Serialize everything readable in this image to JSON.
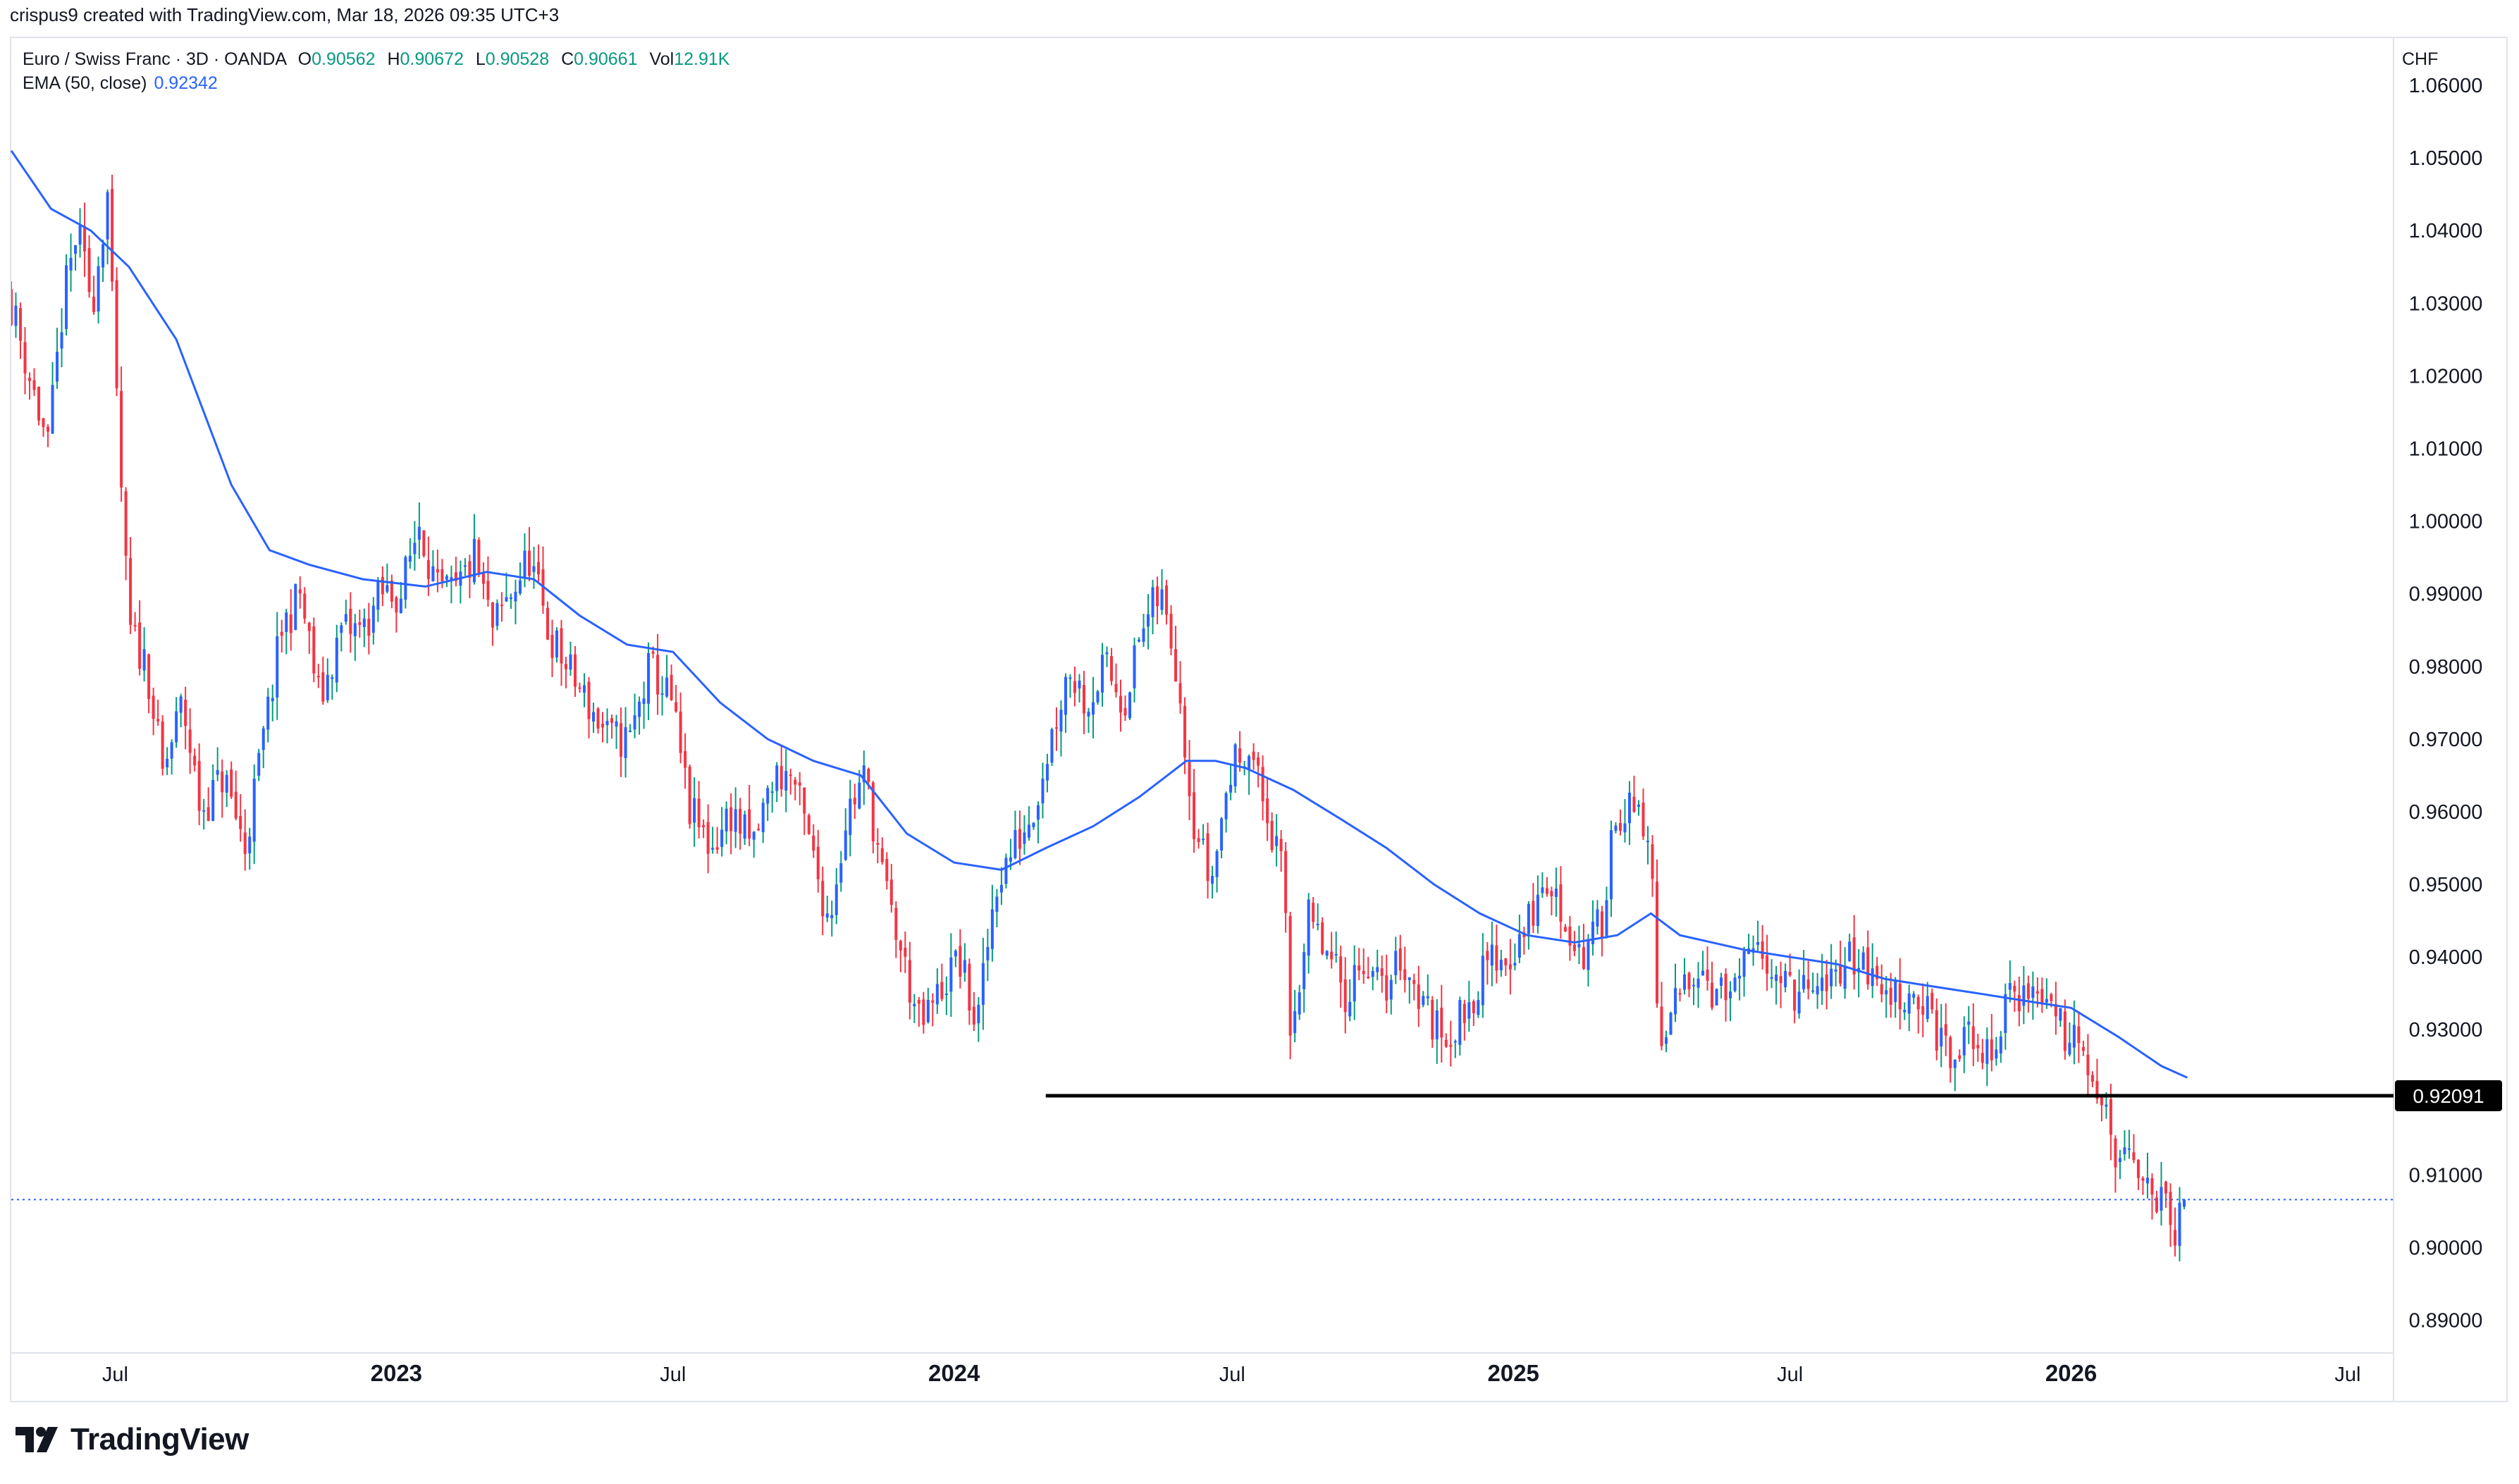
{
  "header": {
    "caption": "crispus9 created with TradingView.com, Mar 18, 2026 09:35 UTC+3"
  },
  "legend": {
    "symbol": "Euro / Swiss Franc · 3D · OANDA",
    "o_key": "O",
    "o_val": "0.90562",
    "h_key": "H",
    "h_val": "0.90672",
    "l_key": "L",
    "l_val": "0.90528",
    "c_key": "C",
    "c_val": "0.90661",
    "vol_key": "Vol",
    "vol_val": "12.91K",
    "ema_label": "EMA (50, close)",
    "ema_val": "0.92342"
  },
  "currency": "CHF",
  "brand": {
    "name": "TradingView"
  },
  "colors": {
    "up": "#089981",
    "up_body": "#2962ff",
    "down": "#f23645",
    "ema": "#2962ff",
    "support": "#000000",
    "grid": "#e0e3eb",
    "text": "#131722"
  },
  "chart_data": {
    "type": "candlestick",
    "symbol": "EURCHF",
    "timeframe": "3D",
    "y_ticks": [
      1.06,
      1.05,
      1.04,
      1.03,
      1.02,
      1.01,
      1.0,
      0.99,
      0.98,
      0.97,
      0.96,
      0.95,
      0.94,
      0.93,
      0.91,
      0.9,
      0.89
    ],
    "y_tick_labels": [
      "1.06000",
      "1.05000",
      "1.04000",
      "1.03000",
      "1.02000",
      "1.01000",
      "1.00000",
      "0.99000",
      "0.98000",
      "0.97000",
      "0.96000",
      "0.95000",
      "0.94000",
      "0.93000",
      "0.91000",
      "0.90000",
      "0.89000"
    ],
    "ylim": [
      0.8855,
      1.0665
    ],
    "x_range": [
      "2022-04-24",
      "2026-07-31"
    ],
    "x_ticks": [
      {
        "date": "2022-07-01",
        "label": "Jul",
        "bold": false
      },
      {
        "date": "2023-01-01",
        "label": "2023",
        "bold": true
      },
      {
        "date": "2023-07-01",
        "label": "Jul",
        "bold": false
      },
      {
        "date": "2024-01-01",
        "label": "2024",
        "bold": true
      },
      {
        "date": "2024-07-01",
        "label": "Jul",
        "bold": false
      },
      {
        "date": "2025-01-01",
        "label": "2025",
        "bold": true
      },
      {
        "date": "2025-07-01",
        "label": "Jul",
        "bold": false
      },
      {
        "date": "2026-01-01",
        "label": "2026",
        "bold": true
      },
      {
        "date": "2026-07-01",
        "label": "Jul",
        "bold": false
      }
    ],
    "price_path": [
      {
        "date": "2022-04-24",
        "price": 1.03
      },
      {
        "date": "2022-05-06",
        "price": 1.02
      },
      {
        "date": "2022-05-18",
        "price": 1.01
      },
      {
        "date": "2022-05-28",
        "price": 1.03
      },
      {
        "date": "2022-06-06",
        "price": 1.04
      },
      {
        "date": "2022-06-16",
        "price": 1.03
      },
      {
        "date": "2022-06-26",
        "price": 1.045
      },
      {
        "date": "2022-07-01",
        "price": 1.02
      },
      {
        "date": "2022-07-10",
        "price": 0.985
      },
      {
        "date": "2022-07-22",
        "price": 0.98
      },
      {
        "date": "2022-08-01",
        "price": 0.965
      },
      {
        "date": "2022-08-14",
        "price": 0.975
      },
      {
        "date": "2022-08-26",
        "price": 0.96
      },
      {
        "date": "2022-09-10",
        "price": 0.965
      },
      {
        "date": "2022-09-24",
        "price": 0.955
      },
      {
        "date": "2022-10-06",
        "price": 0.97
      },
      {
        "date": "2022-10-18",
        "price": 0.985
      },
      {
        "date": "2022-10-30",
        "price": 0.99
      },
      {
        "date": "2022-11-12",
        "price": 0.975
      },
      {
        "date": "2022-11-26",
        "price": 0.985
      },
      {
        "date": "2022-12-10",
        "price": 0.985
      },
      {
        "date": "2022-12-22",
        "price": 0.99
      },
      {
        "date": "2023-01-04",
        "price": 0.99
      },
      {
        "date": "2023-01-16",
        "price": 1.0
      },
      {
        "date": "2023-01-28",
        "price": 0.99
      },
      {
        "date": "2023-02-09",
        "price": 0.99
      },
      {
        "date": "2023-02-21",
        "price": 0.995
      },
      {
        "date": "2023-03-05",
        "price": 0.985
      },
      {
        "date": "2023-03-17",
        "price": 0.99
      },
      {
        "date": "2023-03-29",
        "price": 0.995
      },
      {
        "date": "2023-04-10",
        "price": 0.985
      },
      {
        "date": "2023-04-22",
        "price": 0.98
      },
      {
        "date": "2023-05-06",
        "price": 0.975
      },
      {
        "date": "2023-05-20",
        "price": 0.97
      },
      {
        "date": "2023-06-03",
        "price": 0.97
      },
      {
        "date": "2023-06-16",
        "price": 0.98
      },
      {
        "date": "2023-06-30",
        "price": 0.975
      },
      {
        "date": "2023-07-12",
        "price": 0.96
      },
      {
        "date": "2023-07-26",
        "price": 0.955
      },
      {
        "date": "2023-08-08",
        "price": 0.96
      },
      {
        "date": "2023-08-22",
        "price": 0.955
      },
      {
        "date": "2023-09-05",
        "price": 0.965
      },
      {
        "date": "2023-09-17",
        "price": 0.965
      },
      {
        "date": "2023-09-29",
        "price": 0.955
      },
      {
        "date": "2023-10-11",
        "price": 0.945
      },
      {
        "date": "2023-10-23",
        "price": 0.96
      },
      {
        "date": "2023-11-04",
        "price": 0.965
      },
      {
        "date": "2023-11-16",
        "price": 0.95
      },
      {
        "date": "2023-11-28",
        "price": 0.94
      },
      {
        "date": "2023-12-10",
        "price": 0.93
      },
      {
        "date": "2023-12-22",
        "price": 0.935
      },
      {
        "date": "2024-01-04",
        "price": 0.94
      },
      {
        "date": "2024-01-16",
        "price": 0.93
      },
      {
        "date": "2024-01-28",
        "price": 0.95
      },
      {
        "date": "2024-02-09",
        "price": 0.955
      },
      {
        "date": "2024-02-21",
        "price": 0.96
      },
      {
        "date": "2024-03-04",
        "price": 0.97
      },
      {
        "date": "2024-03-16",
        "price": 0.98
      },
      {
        "date": "2024-03-28",
        "price": 0.975
      },
      {
        "date": "2024-04-09",
        "price": 0.98
      },
      {
        "date": "2024-04-21",
        "price": 0.975
      },
      {
        "date": "2024-05-03",
        "price": 0.985
      },
      {
        "date": "2024-05-15",
        "price": 0.99
      },
      {
        "date": "2024-05-26",
        "price": 0.98
      },
      {
        "date": "2024-06-05",
        "price": 0.96
      },
      {
        "date": "2024-06-17",
        "price": 0.95
      },
      {
        "date": "2024-06-29",
        "price": 0.965
      },
      {
        "date": "2024-07-11",
        "price": 0.97
      },
      {
        "date": "2024-07-23",
        "price": 0.96
      },
      {
        "date": "2024-08-04",
        "price": 0.95
      },
      {
        "date": "2024-08-08",
        "price": 0.93
      },
      {
        "date": "2024-08-20",
        "price": 0.945
      },
      {
        "date": "2024-09-01",
        "price": 0.94
      },
      {
        "date": "2024-09-13",
        "price": 0.935
      },
      {
        "date": "2024-09-25",
        "price": 0.94
      },
      {
        "date": "2024-10-07",
        "price": 0.935
      },
      {
        "date": "2024-10-19",
        "price": 0.94
      },
      {
        "date": "2024-10-31",
        "price": 0.935
      },
      {
        "date": "2024-11-12",
        "price": 0.93
      },
      {
        "date": "2024-11-24",
        "price": 0.93
      },
      {
        "date": "2024-12-06",
        "price": 0.935
      },
      {
        "date": "2024-12-18",
        "price": 0.94
      },
      {
        "date": "2024-12-30",
        "price": 0.94
      },
      {
        "date": "2025-01-11",
        "price": 0.945
      },
      {
        "date": "2025-01-23",
        "price": 0.95
      },
      {
        "date": "2025-02-04",
        "price": 0.945
      },
      {
        "date": "2025-02-16",
        "price": 0.94
      },
      {
        "date": "2025-02-28",
        "price": 0.945
      },
      {
        "date": "2025-03-08",
        "price": 0.96
      },
      {
        "date": "2025-03-20",
        "price": 0.96
      },
      {
        "date": "2025-04-01",
        "price": 0.955
      },
      {
        "date": "2025-04-07",
        "price": 0.925
      },
      {
        "date": "2025-04-19",
        "price": 0.935
      },
      {
        "date": "2025-05-01",
        "price": 0.94
      },
      {
        "date": "2025-05-13",
        "price": 0.935
      },
      {
        "date": "2025-05-25",
        "price": 0.935
      },
      {
        "date": "2025-06-06",
        "price": 0.94
      },
      {
        "date": "2025-06-18",
        "price": 0.94
      },
      {
        "date": "2025-06-30",
        "price": 0.935
      },
      {
        "date": "2025-07-12",
        "price": 0.935
      },
      {
        "date": "2025-07-24",
        "price": 0.935
      },
      {
        "date": "2025-08-05",
        "price": 0.94
      },
      {
        "date": "2025-08-17",
        "price": 0.94
      },
      {
        "date": "2025-08-29",
        "price": 0.935
      },
      {
        "date": "2025-09-10",
        "price": 0.935
      },
      {
        "date": "2025-09-22",
        "price": 0.935
      },
      {
        "date": "2025-10-04",
        "price": 0.93
      },
      {
        "date": "2025-10-16",
        "price": 0.925
      },
      {
        "date": "2025-10-28",
        "price": 0.93
      },
      {
        "date": "2025-11-09",
        "price": 0.925
      },
      {
        "date": "2025-11-21",
        "price": 0.935
      },
      {
        "date": "2025-12-03",
        "price": 0.935
      },
      {
        "date": "2025-12-15",
        "price": 0.935
      },
      {
        "date": "2025-12-27",
        "price": 0.93
      },
      {
        "date": "2026-01-08",
        "price": 0.93
      },
      {
        "date": "2026-01-20",
        "price": 0.92
      },
      {
        "date": "2026-02-01",
        "price": 0.912
      },
      {
        "date": "2026-02-13",
        "price": 0.91
      },
      {
        "date": "2026-02-25",
        "price": 0.908
      },
      {
        "date": "2026-03-09",
        "price": 0.902
      },
      {
        "date": "2026-03-18",
        "price": 0.9066
      }
    ],
    "ema": {
      "label": "EMA (50, close)",
      "points": [
        {
          "date": "2022-04-24",
          "price": 1.051
        },
        {
          "date": "2022-05-20",
          "price": 1.043
        },
        {
          "date": "2022-06-15",
          "price": 1.04
        },
        {
          "date": "2022-07-10",
          "price": 1.035
        },
        {
          "date": "2022-08-10",
          "price": 1.025
        },
        {
          "date": "2022-09-15",
          "price": 1.005
        },
        {
          "date": "2022-10-10",
          "price": 0.996
        },
        {
          "date": "2022-11-05",
          "price": 0.994
        },
        {
          "date": "2022-12-10",
          "price": 0.992
        },
        {
          "date": "2023-01-20",
          "price": 0.991
        },
        {
          "date": "2023-03-01",
          "price": 0.993
        },
        {
          "date": "2023-04-01",
          "price": 0.992
        },
        {
          "date": "2023-05-01",
          "price": 0.987
        },
        {
          "date": "2023-06-01",
          "price": 0.983
        },
        {
          "date": "2023-07-01",
          "price": 0.982
        },
        {
          "date": "2023-08-01",
          "price": 0.975
        },
        {
          "date": "2023-09-01",
          "price": 0.97
        },
        {
          "date": "2023-10-01",
          "price": 0.967
        },
        {
          "date": "2023-11-01",
          "price": 0.965
        },
        {
          "date": "2023-12-01",
          "price": 0.957
        },
        {
          "date": "2024-01-01",
          "price": 0.953
        },
        {
          "date": "2024-02-01",
          "price": 0.952
        },
        {
          "date": "2024-03-01",
          "price": 0.955
        },
        {
          "date": "2024-04-01",
          "price": 0.958
        },
        {
          "date": "2024-05-01",
          "price": 0.962
        },
        {
          "date": "2024-06-01",
          "price": 0.967
        },
        {
          "date": "2024-06-20",
          "price": 0.967
        },
        {
          "date": "2024-07-10",
          "price": 0.966
        },
        {
          "date": "2024-08-10",
          "price": 0.963
        },
        {
          "date": "2024-09-10",
          "price": 0.959
        },
        {
          "date": "2024-10-10",
          "price": 0.955
        },
        {
          "date": "2024-11-10",
          "price": 0.95
        },
        {
          "date": "2024-12-10",
          "price": 0.946
        },
        {
          "date": "2025-01-10",
          "price": 0.943
        },
        {
          "date": "2025-02-10",
          "price": 0.942
        },
        {
          "date": "2025-03-10",
          "price": 0.943
        },
        {
          "date": "2025-04-01",
          "price": 0.946
        },
        {
          "date": "2025-04-20",
          "price": 0.943
        },
        {
          "date": "2025-06-01",
          "price": 0.941
        },
        {
          "date": "2025-07-01",
          "price": 0.94
        },
        {
          "date": "2025-08-01",
          "price": 0.939
        },
        {
          "date": "2025-09-01",
          "price": 0.937
        },
        {
          "date": "2025-10-01",
          "price": 0.936
        },
        {
          "date": "2025-11-01",
          "price": 0.935
        },
        {
          "date": "2025-12-01",
          "price": 0.934
        },
        {
          "date": "2026-01-01",
          "price": 0.933
        },
        {
          "date": "2026-02-01",
          "price": 0.929
        },
        {
          "date": "2026-03-01",
          "price": 0.925
        },
        {
          "date": "2026-03-18",
          "price": 0.9234
        }
      ]
    },
    "support_line": {
      "price": 0.92091,
      "label": "0.92091",
      "from": "2024-03-01"
    },
    "last_price": 0.90661
  }
}
